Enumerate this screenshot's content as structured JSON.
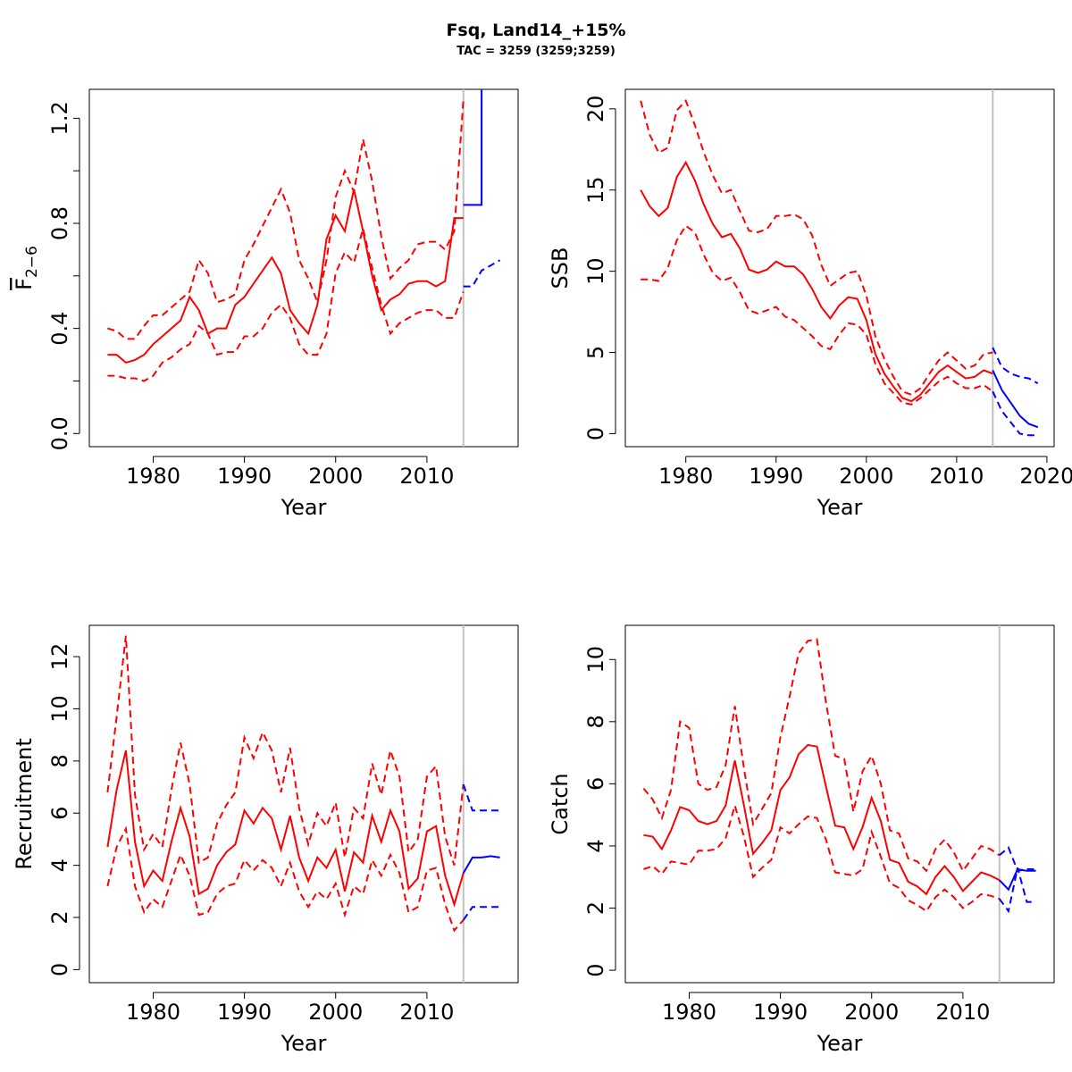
{
  "title": "Fsq, Land14_+15%",
  "subtitle": "TAC = 3259 (3259;3259)",
  "colors": {
    "assessment": "#ff0000",
    "forecast": "#0000ff",
    "ref_line": "#c0c0c0"
  },
  "chart_data": [
    {
      "type": "line",
      "panel": "F",
      "xlabel": "Year",
      "ylabel_main": "F",
      "ylabel_sub": "2−6",
      "xlim": [
        1973,
        2020
      ],
      "ylim": [
        -0.05,
        1.31
      ],
      "xticks": [
        1980,
        1990,
        2000,
        2010
      ],
      "yticks": [
        0.0,
        0.2,
        0.4,
        0.6,
        0.8,
        1.0,
        1.2
      ],
      "ytick_labels": [
        "0.0",
        "",
        "0.4",
        "",
        "0.8",
        "",
        "1.2"
      ],
      "ref_year": 2014,
      "x": [
        1975,
        1976,
        1977,
        1978,
        1979,
        1980,
        1981,
        1982,
        1983,
        1984,
        1985,
        1986,
        1987,
        1988,
        1989,
        1990,
        1991,
        1992,
        1993,
        1994,
        1995,
        1996,
        1997,
        1998,
        1999,
        2000,
        2001,
        2002,
        2003,
        2004,
        2005,
        2006,
        2007,
        2008,
        2009,
        2010,
        2011,
        2012,
        2013,
        2014
      ],
      "series": [
        {
          "role": "estimate",
          "values": [
            0.3,
            0.3,
            0.27,
            0.28,
            0.3,
            0.34,
            0.37,
            0.4,
            0.43,
            0.52,
            0.47,
            0.38,
            0.4,
            0.4,
            0.49,
            0.52,
            0.57,
            0.62,
            0.67,
            0.61,
            0.47,
            0.42,
            0.38,
            0.49,
            0.74,
            0.83,
            0.77,
            0.93,
            0.77,
            0.6,
            0.47,
            0.51,
            0.53,
            0.57,
            0.58,
            0.58,
            0.56,
            0.58,
            0.82,
            0.82
          ]
        },
        {
          "role": "upper",
          "values": [
            0.4,
            0.39,
            0.36,
            0.36,
            0.41,
            0.45,
            0.45,
            0.48,
            0.51,
            0.54,
            0.66,
            0.61,
            0.5,
            0.51,
            0.53,
            0.66,
            0.72,
            0.79,
            0.86,
            0.93,
            0.84,
            0.66,
            0.59,
            0.5,
            0.66,
            0.9,
            1.0,
            0.92,
            1.12,
            0.96,
            0.75,
            0.59,
            0.63,
            0.66,
            0.72,
            0.73,
            0.73,
            0.7,
            0.77,
            1.27
          ]
        },
        {
          "role": "lower",
          "values": [
            0.22,
            0.22,
            0.21,
            0.21,
            0.2,
            0.22,
            0.27,
            0.29,
            0.32,
            0.34,
            0.41,
            0.38,
            0.3,
            0.31,
            0.31,
            0.37,
            0.37,
            0.4,
            0.46,
            0.49,
            0.44,
            0.34,
            0.3,
            0.3,
            0.38,
            0.61,
            0.69,
            0.65,
            0.78,
            0.63,
            0.49,
            0.38,
            0.42,
            0.44,
            0.46,
            0.47,
            0.47,
            0.44,
            0.44,
            0.54
          ]
        }
      ],
      "forecast": [
        {
          "role": "estimate",
          "step": true,
          "x": [
            2014,
            2015,
            2016
          ],
          "values": [
            0.87,
            0.87,
            1.31
          ]
        },
        {
          "role": "ci",
          "x": [
            2014,
            2015,
            2016,
            2017,
            2018
          ],
          "values": [
            0.56,
            0.56,
            0.62,
            0.64,
            0.66
          ]
        }
      ]
    },
    {
      "type": "line",
      "panel": "SSB",
      "xlabel": "Year",
      "ylabel": "SSB",
      "xlim": [
        1973.3,
        2020.8
      ],
      "ylim": [
        -0.8,
        21.2
      ],
      "xticks": [
        1980,
        1990,
        2000,
        2010,
        2020
      ],
      "yticks": [
        0,
        5,
        10,
        15,
        20
      ],
      "ytick_labels": [
        "0",
        "5",
        "10",
        "15",
        "20"
      ],
      "ref_year": 2014,
      "x": [
        1975,
        1976,
        1977,
        1978,
        1979,
        1980,
        1981,
        1982,
        1983,
        1984,
        1985,
        1986,
        1987,
        1988,
        1989,
        1990,
        1991,
        1992,
        1993,
        1994,
        1995,
        1996,
        1997,
        1998,
        1999,
        2000,
        2001,
        2002,
        2003,
        2004,
        2005,
        2006,
        2007,
        2008,
        2009,
        2010,
        2011,
        2012,
        2013,
        2014
      ],
      "series": [
        {
          "role": "estimate",
          "values": [
            15.0,
            14.0,
            13.4,
            13.9,
            15.8,
            16.7,
            15.6,
            14.1,
            12.9,
            12.1,
            12.3,
            11.4,
            10.1,
            9.9,
            10.1,
            10.6,
            10.3,
            10.3,
            9.8,
            8.9,
            7.8,
            7.1,
            7.9,
            8.4,
            8.3,
            7.0,
            4.9,
            3.7,
            2.9,
            2.2,
            2.0,
            2.4,
            3.1,
            3.8,
            4.2,
            3.8,
            3.4,
            3.5,
            3.9,
            3.7
          ]
        },
        {
          "role": "upper",
          "values": [
            20.5,
            18.4,
            17.3,
            17.6,
            19.9,
            20.5,
            19.0,
            17.3,
            15.9,
            14.8,
            15.0,
            13.7,
            12.5,
            12.4,
            12.6,
            13.4,
            13.4,
            13.5,
            13.2,
            12.2,
            10.4,
            9.1,
            9.5,
            9.9,
            10.0,
            8.5,
            6.0,
            4.6,
            3.5,
            2.6,
            2.4,
            2.8,
            3.7,
            4.5,
            5.0,
            4.5,
            4.0,
            4.2,
            4.9,
            5.0
          ]
        },
        {
          "role": "lower",
          "values": [
            9.5,
            9.5,
            9.4,
            10.2,
            11.9,
            12.8,
            12.4,
            11.0,
            9.9,
            9.4,
            9.6,
            8.7,
            7.6,
            7.4,
            7.6,
            7.8,
            7.2,
            7.0,
            6.5,
            6.0,
            5.4,
            5.2,
            6.1,
            6.8,
            6.7,
            6.1,
            4.3,
            3.1,
            2.5,
            1.9,
            1.8,
            2.2,
            2.7,
            3.2,
            3.5,
            3.1,
            2.8,
            2.8,
            3.0,
            2.6
          ]
        }
      ],
      "forecast": [
        {
          "role": "estimate",
          "x": [
            2014,
            2015,
            2016,
            2017,
            2018,
            2019
          ],
          "values": [
            3.9,
            2.7,
            1.9,
            1.1,
            0.6,
            0.4
          ]
        },
        {
          "role": "upper",
          "x": [
            2014,
            2015,
            2016,
            2017,
            2018,
            2019
          ],
          "values": [
            5.3,
            4.1,
            3.7,
            3.5,
            3.4,
            3.1
          ]
        },
        {
          "role": "lower",
          "x": [
            2014,
            2015,
            2016,
            2017,
            2018,
            2019
          ],
          "values": [
            2.6,
            1.4,
            0.7,
            0.0,
            -0.1,
            -0.1
          ]
        }
      ]
    },
    {
      "type": "line",
      "panel": "Recruitment",
      "xlabel": "Year",
      "ylabel": "Recruitment",
      "xlim": [
        1973,
        2020
      ],
      "ylim": [
        -0.5,
        13.2
      ],
      "xticks": [
        1980,
        1990,
        2000,
        2010
      ],
      "yticks": [
        0,
        2,
        4,
        6,
        8,
        10,
        12
      ],
      "ytick_labels": [
        "0",
        "2",
        "4",
        "6",
        "8",
        "10",
        "12"
      ],
      "ref_year": 2014,
      "x": [
        1975,
        1976,
        1977,
        1978,
        1979,
        1980,
        1981,
        1982,
        1983,
        1984,
        1985,
        1986,
        1987,
        1988,
        1989,
        1990,
        1991,
        1992,
        1993,
        1994,
        1995,
        1996,
        1997,
        1998,
        1999,
        2000,
        2001,
        2002,
        2003,
        2004,
        2005,
        2006,
        2007,
        2008,
        2009,
        2010,
        2011,
        2012,
        2013,
        2014
      ],
      "series": [
        {
          "role": "estimate",
          "values": [
            4.7,
            6.9,
            8.4,
            4.9,
            3.2,
            3.8,
            3.4,
            4.9,
            6.2,
            5.1,
            2.9,
            3.1,
            4.0,
            4.5,
            4.8,
            6.1,
            5.6,
            6.2,
            5.8,
            4.6,
            5.9,
            4.3,
            3.4,
            4.3,
            3.9,
            4.6,
            3.0,
            4.5,
            4.1,
            5.9,
            4.9,
            6.1,
            5.3,
            3.1,
            3.5,
            5.3,
            5.5,
            3.6,
            2.5,
            3.7
          ]
        },
        {
          "role": "upper",
          "values": [
            6.8,
            9.7,
            12.8,
            6.7,
            4.6,
            5.2,
            4.7,
            6.9,
            8.7,
            7.1,
            4.1,
            4.3,
            5.6,
            6.3,
            6.8,
            8.9,
            8.1,
            9.1,
            8.4,
            6.8,
            8.5,
            6.2,
            4.8,
            6.0,
            5.5,
            6.4,
            4.3,
            6.2,
            5.8,
            7.9,
            6.7,
            8.4,
            7.4,
            4.5,
            5.0,
            7.4,
            7.8,
            5.1,
            4.0,
            7.1
          ]
        },
        {
          "role": "lower",
          "values": [
            3.2,
            4.7,
            5.4,
            3.2,
            2.2,
            2.7,
            2.4,
            3.4,
            4.4,
            3.6,
            2.1,
            2.2,
            2.9,
            3.2,
            3.3,
            4.2,
            3.8,
            4.2,
            3.9,
            3.2,
            4.1,
            3.0,
            2.4,
            3.0,
            2.7,
            3.3,
            2.1,
            3.2,
            2.9,
            4.2,
            3.6,
            4.4,
            3.7,
            2.2,
            2.4,
            3.8,
            3.9,
            2.5,
            1.5,
            1.9
          ]
        }
      ],
      "forecast": [
        {
          "role": "estimate",
          "x": [
            2014,
            2015,
            2016,
            2017,
            2018
          ],
          "values": [
            3.7,
            4.3,
            4.3,
            4.35,
            4.3
          ]
        },
        {
          "role": "upper",
          "x": [
            2014,
            2015,
            2016,
            2017,
            2018
          ],
          "values": [
            7.1,
            6.1,
            6.1,
            6.1,
            6.1
          ]
        },
        {
          "role": "lower",
          "x": [
            2014,
            2015,
            2016,
            2017,
            2018
          ],
          "values": [
            1.9,
            2.4,
            2.4,
            2.4,
            2.4
          ]
        }
      ]
    },
    {
      "type": "line",
      "panel": "Catch",
      "xlabel": "Year",
      "ylabel": "Catch",
      "xlim": [
        1973,
        2020
      ],
      "ylim": [
        -0.4,
        11.1
      ],
      "xticks": [
        1980,
        1990,
        2000,
        2010
      ],
      "yticks": [
        0,
        2,
        4,
        6,
        8,
        10
      ],
      "ytick_labels": [
        "0",
        "2",
        "4",
        "6",
        "8",
        "10"
      ],
      "ref_year": 2014,
      "x": [
        1975,
        1976,
        1977,
        1978,
        1979,
        1980,
        1981,
        1982,
        1983,
        1984,
        1985,
        1986,
        1987,
        1988,
        1989,
        1990,
        1991,
        1992,
        1993,
        1994,
        1995,
        1996,
        1997,
        1998,
        1999,
        2000,
        2001,
        2002,
        2003,
        2004,
        2005,
        2006,
        2007,
        2008,
        2009,
        2010,
        2011,
        2012,
        2013,
        2014
      ],
      "series": [
        {
          "role": "estimate",
          "values": [
            4.35,
            4.3,
            3.9,
            4.5,
            5.25,
            5.15,
            4.8,
            4.7,
            4.8,
            5.3,
            6.75,
            5.3,
            3.75,
            4.1,
            4.5,
            5.8,
            6.2,
            6.95,
            7.25,
            7.2,
            5.9,
            4.65,
            4.6,
            3.9,
            4.6,
            5.55,
            4.8,
            3.55,
            3.45,
            2.85,
            2.7,
            2.45,
            3.0,
            3.35,
            3.0,
            2.55,
            2.85,
            3.15,
            3.05,
            2.9
          ]
        },
        {
          "role": "upper",
          "values": [
            5.85,
            5.5,
            4.9,
            5.8,
            8.0,
            7.8,
            6.0,
            5.8,
            5.9,
            6.6,
            8.5,
            6.5,
            4.7,
            5.2,
            5.7,
            7.5,
            8.8,
            10.2,
            10.6,
            10.65,
            8.6,
            6.9,
            6.8,
            5.1,
            6.4,
            6.9,
            6.0,
            4.5,
            4.4,
            3.6,
            3.5,
            3.2,
            3.9,
            4.2,
            3.8,
            3.2,
            3.6,
            4.0,
            3.9,
            3.7
          ]
        },
        {
          "role": "lower",
          "values": [
            3.25,
            3.35,
            3.1,
            3.5,
            3.45,
            3.4,
            3.85,
            3.85,
            3.9,
            4.25,
            5.3,
            4.3,
            3.0,
            3.3,
            3.55,
            4.6,
            4.4,
            4.7,
            4.95,
            4.9,
            4.2,
            3.15,
            3.1,
            3.05,
            3.25,
            4.45,
            3.65,
            2.8,
            2.65,
            2.25,
            2.1,
            1.9,
            2.35,
            2.6,
            2.35,
            2.0,
            2.2,
            2.45,
            2.4,
            2.3
          ]
        }
      ],
      "forecast": [
        {
          "role": "estimate",
          "x": [
            2014,
            2015,
            2016,
            2017,
            2018
          ],
          "values": [
            2.9,
            2.6,
            3.25,
            3.2,
            3.2
          ]
        },
        {
          "role": "upper",
          "x": [
            2014,
            2015,
            2016,
            2017,
            2018
          ],
          "values": [
            3.7,
            3.95,
            3.2,
            3.25,
            3.25
          ]
        },
        {
          "role": "lower",
          "x": [
            2014,
            2015,
            2016,
            2017,
            2018
          ],
          "values": [
            2.3,
            1.9,
            3.3,
            2.2,
            2.2
          ]
        }
      ]
    }
  ]
}
